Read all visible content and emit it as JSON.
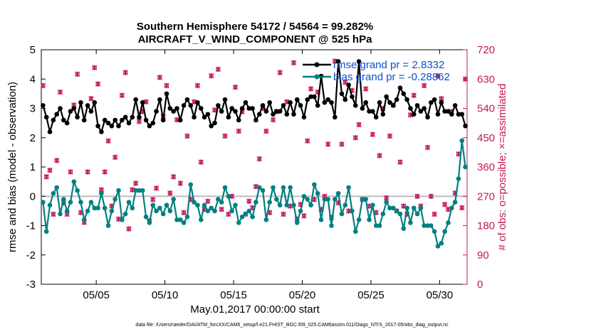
{
  "chart_data": {
    "type": "line",
    "title_line1": "Southern Hemisphere 54172 / 54564 = 99.282%",
    "title_line2": "AIRCRAFT_V_WIND_COMPONENT @ 525 hPa",
    "xlabel": "May.01,2017 00:00:00 start",
    "ylabel": "rmse and bias (model - observation)",
    "ylabel_right": "# of obs: o=possible; ×=assimilated",
    "footer": "data file: /Users/raeder/DAI/ATM_forcXX/CAM6_setup/f.e21.FHIST_BGC.f09_025.CAM6assim.011/Diags_NTrS_2017-05/obs_diag_output.nc",
    "ylim": [
      -3,
      5
    ],
    "ylim_right": [
      0,
      720
    ],
    "xlim": [
      1,
      32
    ],
    "yticks": [
      -3,
      -2,
      -1,
      0,
      1,
      2,
      3,
      4,
      5
    ],
    "yticks_right": [
      0,
      90,
      180,
      270,
      360,
      450,
      540,
      630,
      720
    ],
    "xticks": [
      {
        "label": "05/05",
        "day": 5
      },
      {
        "label": "05/10",
        "day": 10
      },
      {
        "label": "05/15",
        "day": 15
      },
      {
        "label": "05/20",
        "day": 20
      },
      {
        "label": "05/25",
        "day": 25
      },
      {
        "label": "05/30",
        "day": 30
      }
    ],
    "x_start_day": 1.125,
    "x_step_day": 0.25,
    "legend": [
      {
        "name": "rmse grand pr = 2.8332",
        "color": "#000000"
      },
      {
        "name": "bias grand pr = -0.28862",
        "color": "#008080"
      }
    ],
    "series": [
      {
        "name": "rmse",
        "color": "#000000",
        "values": [
          3.1,
          2.7,
          2.2,
          2.6,
          2.8,
          3.0,
          2.6,
          2.5,
          2.9,
          3.0,
          2.7,
          3.2,
          2.6,
          3.1,
          2.9,
          3.2,
          2.4,
          2.2,
          2.6,
          2.5,
          2.4,
          2.6,
          2.4,
          2.6,
          2.7,
          2.5,
          2.7,
          3.3,
          2.7,
          3.2,
          2.6,
          2.4,
          2.5,
          2.9,
          3.3,
          2.6,
          3.5,
          3.0,
          2.9,
          3.0,
          2.6,
          3.1,
          3.3,
          3.1,
          2.7,
          3.2,
          3.0,
          2.7,
          2.8,
          2.4,
          2.5,
          3.1,
          2.9,
          3.3,
          2.7,
          3.0,
          2.9,
          2.6,
          3.0,
          3.2,
          3.0,
          3.0,
          2.6,
          2.8,
          3.1,
          2.9,
          3.2,
          2.8,
          2.9,
          2.9,
          3.1,
          2.8,
          3.2,
          2.8,
          3.3,
          3.1,
          2.7,
          3.3,
          3.4,
          3.4,
          3.1,
          4.1,
          3.2,
          3.3,
          3.2,
          2.7,
          4.6,
          3.5,
          3.3,
          3.8,
          3.4,
          3.1,
          4.6,
          3.0,
          3.2,
          2.9,
          2.9,
          2.7,
          3.2,
          2.8,
          3.4,
          3.2,
          3.1,
          3.3,
          3.7,
          3.5,
          3.3,
          3.0,
          2.8,
          3.1,
          2.9,
          3.0,
          2.7,
          3.2,
          3.3,
          2.8,
          3.2,
          2.9,
          2.9,
          2.8,
          3.1,
          2.8,
          2.8,
          2.4,
          2.9,
          3.0,
          2.5,
          2.6,
          3.2,
          3.0,
          2.5,
          2.3,
          2.6,
          3.5,
          2.2,
          2.8,
          2.3,
          2.4,
          2.9,
          2.7,
          2.9,
          3.0,
          3.1,
          2.6,
          3.0,
          3.3,
          3.2,
          2.8,
          2.6,
          3.0,
          3.5,
          3.0,
          4.2,
          3.2,
          3.8,
          4.1,
          4.3,
          3.5,
          3.4,
          3.0,
          4.4,
          3.4,
          3.4,
          3.0,
          3.4,
          3.2,
          2.7,
          3.6
        ],
        "_compact": true
      },
      {
        "name": "bias",
        "color": "#008080",
        "values": [
          -0.2,
          -1.2,
          -0.3,
          0.1,
          0.3,
          -0.6,
          -0.1,
          -0.5,
          -0.2,
          0.5,
          0.2,
          -0.2,
          -0.8,
          -0.5,
          -0.2,
          -0.4,
          -0.4,
          0.1,
          -0.4,
          -1.0,
          -0.5,
          -0.1,
          0.2,
          -0.8,
          -0.6,
          -0.2,
          -0.4,
          0.2,
          0.2,
          0.2,
          -0.7,
          -0.9,
          -0.3,
          -0.5,
          -0.4,
          -0.6,
          -0.3,
          -0.5,
          -0.1,
          -0.8,
          -0.8,
          -0.9,
          -0.7,
          0.4,
          -0.2,
          -0.3,
          -0.8,
          -0.3,
          -0.5,
          -0.4,
          -0.5,
          -0.1,
          -0.2,
          0.3,
          0.0,
          -0.5,
          -0.3,
          -0.9,
          -0.7,
          -0.6,
          -0.5,
          -0.7,
          -0.2,
          0.3,
          0.2,
          -0.8,
          -0.2,
          0.3,
          -0.1,
          -0.3,
          0.3,
          -0.3,
          0.3,
          -0.3,
          -0.9,
          -0.5,
          0.0,
          -0.1,
          -0.3,
          0.4,
          0.1,
          -0.8,
          -0.1,
          -0.1,
          -1.0,
          -0.1,
          0.1,
          -0.6,
          -0.3,
          0.3,
          -0.5,
          -1.2,
          -0.8,
          -0.1,
          -0.1,
          -0.8,
          -0.3,
          -1.0,
          -1.0,
          -0.6,
          -0.2,
          -0.4,
          -0.4,
          -0.5,
          -0.6,
          -1.1,
          -0.4,
          -0.9,
          -0.4,
          -0.6,
          -0.4,
          -1.0,
          -1.0,
          -1.0,
          -1.2,
          -1.7,
          -1.6,
          -1.2,
          -0.9,
          -0.4,
          -0.2,
          0.6,
          1.9,
          1.0,
          0.0,
          -0.6,
          -0.3,
          -0.5,
          0.3,
          0.1,
          -0.5,
          -0.6,
          -0.3,
          -0.8,
          -0.6,
          0.3,
          1.0,
          2.0,
          1.0,
          0.2,
          0.3,
          -0.3,
          -0.5,
          -1.0,
          -0.9,
          -0.5,
          0.2,
          0.0,
          -0.3,
          -0.6,
          -0.1,
          0.4,
          -0.4,
          -0.7,
          -0.4,
          -0.1,
          -0.5,
          0.0,
          -0.3,
          -0.6,
          -0.1,
          -0.5,
          -0.5,
          -0.6,
          -0.5,
          -0.5,
          -0.4,
          -0.9,
          -0.3,
          -0.6,
          -0.5,
          -1.3,
          -0.8,
          -1.0,
          -0.6,
          0.2,
          -1.2,
          -0.6,
          -1.0,
          0.5,
          0.2,
          -0.4,
          -0.6
        ],
        "_compact": true
      },
      {
        "name": "obs_possible",
        "color": "#c2185b",
        "axis": "right",
        "values": [
          610,
          330,
          350,
          215,
          380,
          590,
          250,
          215,
          345,
          550,
          645,
          220,
          190,
          345,
          570,
          665,
          615,
          290,
          345,
          440,
          240,
          390,
          200,
          580,
          650,
          170,
          290,
          310,
          500,
          530,
          560,
          195,
          260,
          295,
          635,
          515,
          610,
          280,
          330,
          505,
          310,
          220,
          455,
          260,
          560,
          610,
          375,
          230,
          255,
          640,
          535,
          660,
          230,
          455,
          215,
          270,
          605,
          470,
          530,
          215,
          255,
          235,
          300,
          385,
          540,
          470,
          220,
          505,
          530,
          650,
          215,
          560,
          240,
          680,
          200,
          245,
          210,
          440,
          600,
          260,
          590,
          230,
          270,
          430,
          205,
          685,
          250,
          430,
          620,
          225,
          595,
          450,
          490,
          260,
          600,
          240,
          460,
          220,
          395,
          540,
          265,
          455,
          550,
          225,
          375,
          240,
          215,
          520,
          580,
          270,
          240,
          610,
          420,
          270,
          215,
          640,
          570,
          245,
          230,
          530,
          280,
          400,
          235,
          630,
          230,
          210,
          590,
          235,
          415,
          210,
          460,
          240,
          265,
          520,
          280,
          400,
          210,
          215,
          220,
          500,
          480,
          240,
          530,
          180,
          400,
          250,
          470,
          640,
          255,
          250,
          450,
          200,
          495,
          565,
          410,
          275,
          500,
          610,
          390,
          180,
          430,
          610,
          200,
          200,
          300,
          240,
          620,
          550,
          620,
          360,
          280
        ],
        "_compact": true
      }
    ]
  }
}
